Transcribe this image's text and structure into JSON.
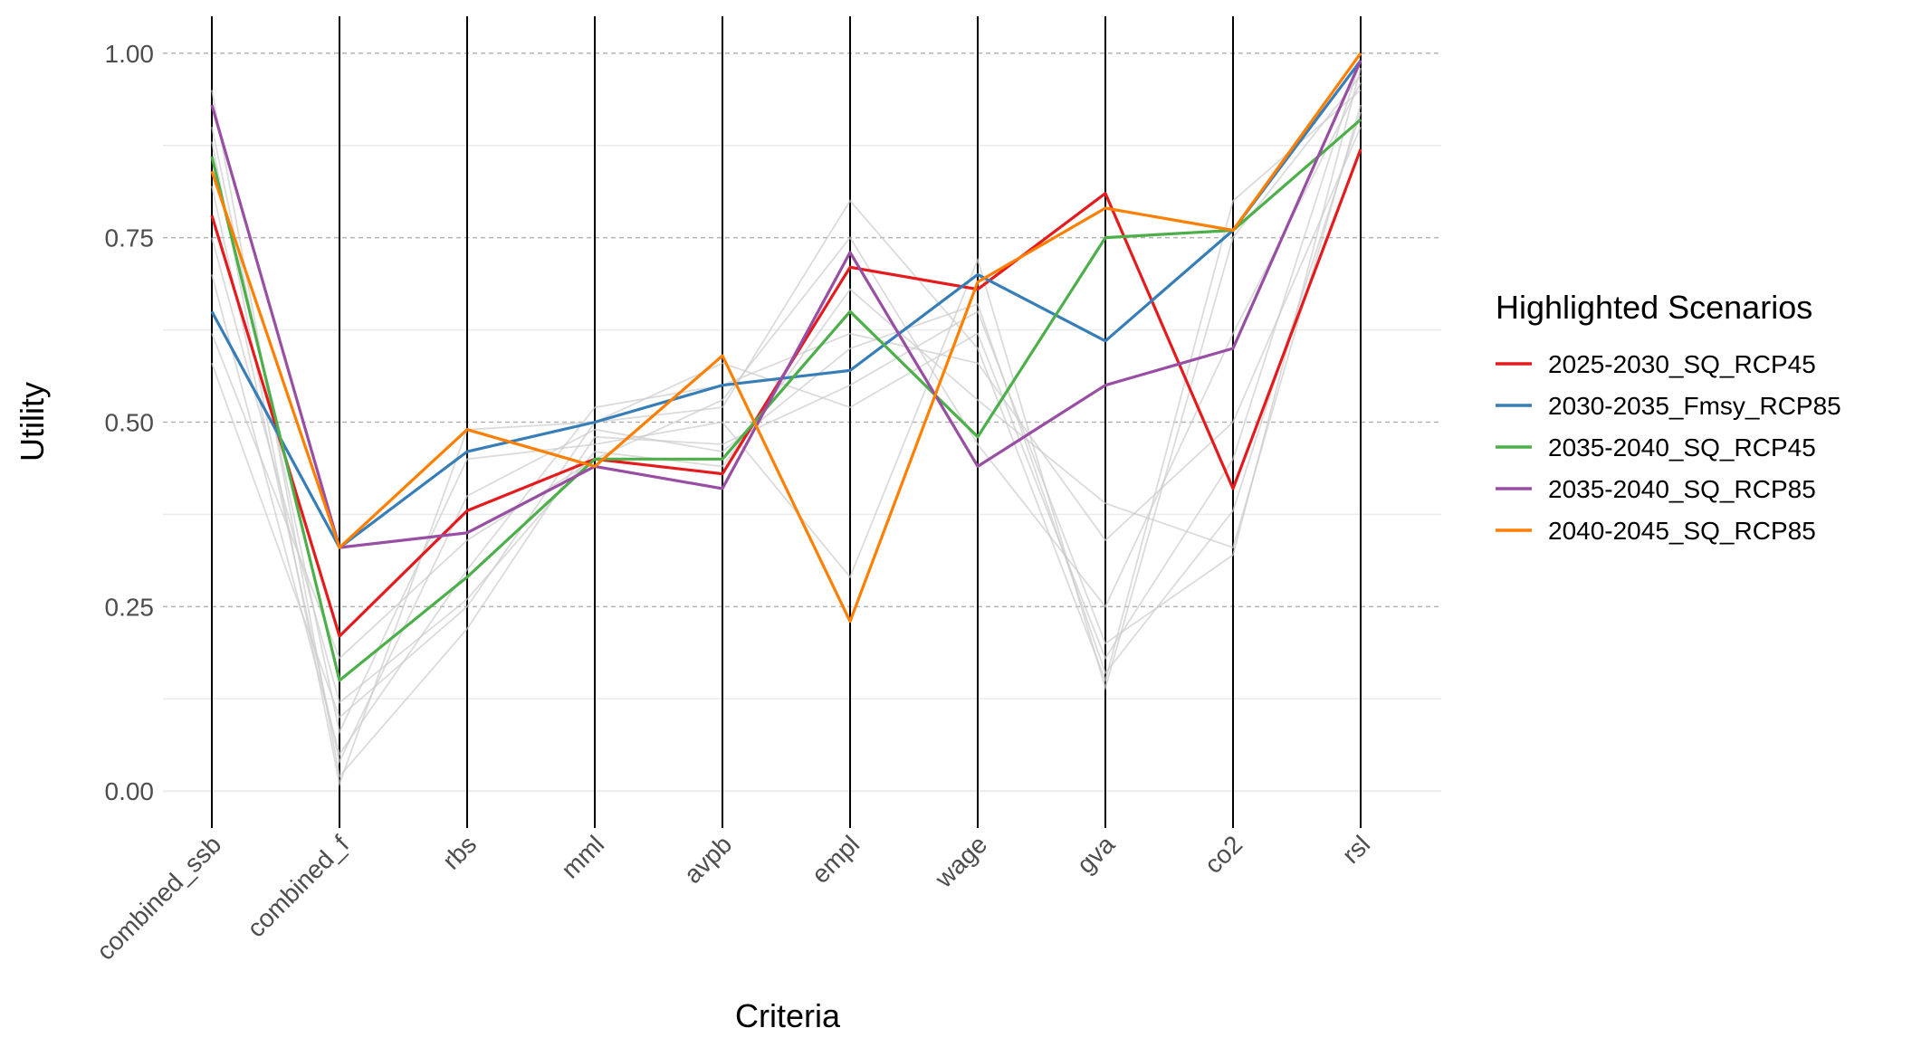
{
  "chart_data": {
    "type": "line",
    "subtype": "parallel-coordinates",
    "title": "",
    "xlabel": "Criteria",
    "ylabel": "Utility",
    "ylim": [
      -0.05,
      1.05
    ],
    "y_ticks": [
      "0.00",
      "0.25",
      "0.50",
      "0.75",
      "1.00"
    ],
    "categories": [
      "combined_ssb",
      "combined_f",
      "rbs",
      "mml",
      "avpb",
      "empl",
      "wage",
      "gva",
      "co2",
      "rsl"
    ],
    "grid": true,
    "legend": {
      "title": "Highlighted Scenarios",
      "position": "right"
    },
    "series": [
      {
        "name": "2025-2030_SQ_RCP45",
        "color": "#E41A1C",
        "values": [
          0.78,
          0.21,
          0.38,
          0.45,
          0.43,
          0.71,
          0.68,
          0.81,
          0.41,
          0.87
        ]
      },
      {
        "name": "2030-2035_Fmsy_RCP85",
        "color": "#377EB8",
        "values": [
          0.65,
          0.33,
          0.46,
          0.5,
          0.55,
          0.57,
          0.7,
          0.61,
          0.76,
          0.99
        ]
      },
      {
        "name": "2035-2040_SQ_RCP45",
        "color": "#4DAF4A",
        "values": [
          0.86,
          0.15,
          0.29,
          0.45,
          0.45,
          0.65,
          0.48,
          0.75,
          0.76,
          0.91
        ]
      },
      {
        "name": "2035-2040_SQ_RCP85",
        "color": "#984EA3",
        "values": [
          0.93,
          0.33,
          0.35,
          0.44,
          0.41,
          0.73,
          0.44,
          0.55,
          0.6,
          0.99
        ]
      },
      {
        "name": "2040-2045_SQ_RCP85",
        "color": "#FF7F00",
        "values": [
          0.84,
          0.33,
          0.49,
          0.44,
          0.59,
          0.23,
          0.69,
          0.79,
          0.76,
          1.0
        ]
      }
    ],
    "background_series": [
      {
        "color": "#cccccc",
        "values": [
          0.58,
          0.1,
          0.25,
          0.5,
          0.52,
          0.8,
          0.6,
          0.15,
          0.8,
          0.95
        ]
      },
      {
        "color": "#cccccc",
        "values": [
          0.95,
          0.02,
          0.22,
          0.48,
          0.47,
          0.55,
          0.65,
          0.2,
          0.32,
          0.98
        ]
      },
      {
        "color": "#cccccc",
        "values": [
          0.7,
          0.05,
          0.3,
          0.52,
          0.55,
          0.62,
          0.58,
          0.34,
          0.5,
          0.9
        ]
      },
      {
        "color": "#cccccc",
        "values": [
          0.9,
          0.08,
          0.45,
          0.47,
          0.5,
          0.29,
          0.72,
          0.14,
          0.75,
          0.97
        ]
      },
      {
        "color": "#cccccc",
        "values": [
          0.75,
          0.12,
          0.26,
          0.46,
          0.44,
          0.68,
          0.53,
          0.39,
          0.33,
          0.93
        ]
      },
      {
        "color": "#cccccc",
        "values": [
          0.88,
          0.01,
          0.49,
          0.5,
          0.58,
          0.52,
          0.62,
          0.18,
          0.45,
          0.99
        ]
      },
      {
        "color": "#cccccc",
        "values": [
          0.62,
          0.18,
          0.34,
          0.45,
          0.53,
          0.75,
          0.47,
          0.25,
          0.62,
          0.96
        ]
      },
      {
        "color": "#cccccc",
        "values": [
          0.82,
          0.04,
          0.4,
          0.49,
          0.46,
          0.6,
          0.66,
          0.16,
          0.38,
          0.92
        ]
      }
    ]
  }
}
